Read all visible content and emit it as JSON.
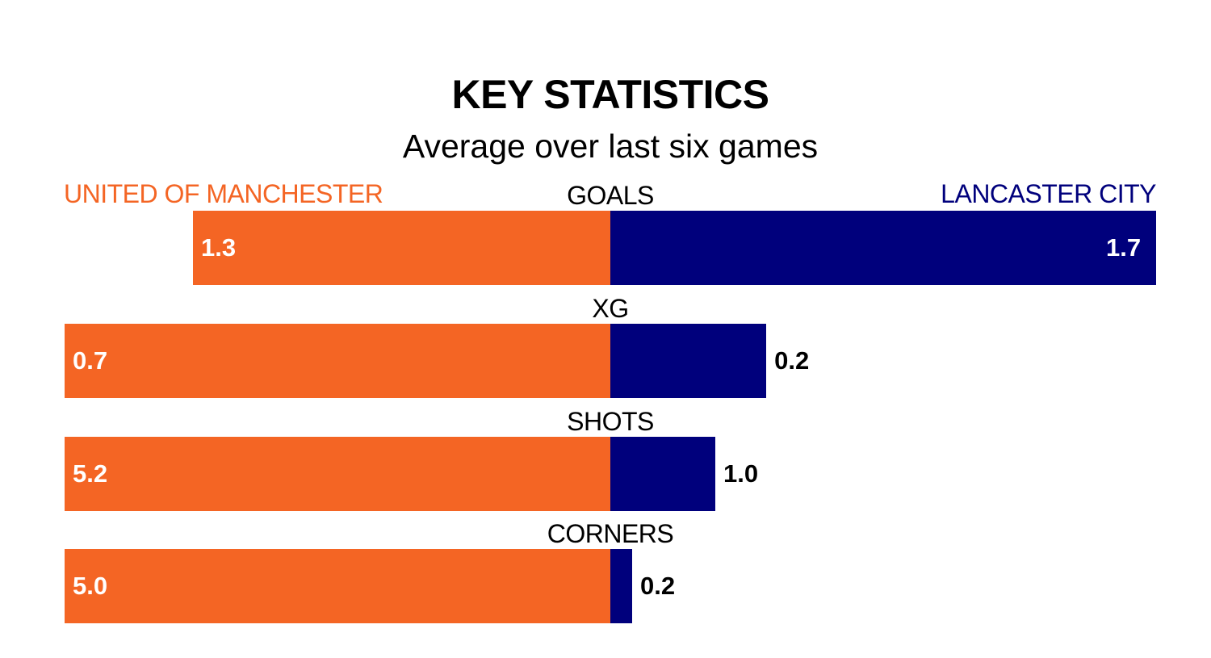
{
  "chart_data": {
    "type": "bar",
    "title": "KEY STATISTICS",
    "subtitle": "Average over last six games",
    "series": [
      {
        "name": "UNITED OF MANCHESTER",
        "color": "#f46524",
        "values": [
          1.3,
          0.7,
          5.2,
          5.0
        ]
      },
      {
        "name": "LANCASTER CITY",
        "color": "#00007c",
        "values": [
          1.7,
          0.2,
          1.0,
          0.2
        ]
      }
    ],
    "categories": [
      "GOALS",
      "XG",
      "SHOTS",
      "CORNERS"
    ],
    "value_labels": {
      "left": [
        "1.3",
        "0.7",
        "5.2",
        "5.0"
      ],
      "right": [
        "1.7",
        "0.2",
        "1.0",
        "0.2"
      ]
    },
    "layout": "diverging horizontal bars, each statistic scaled to its own maximum"
  }
}
